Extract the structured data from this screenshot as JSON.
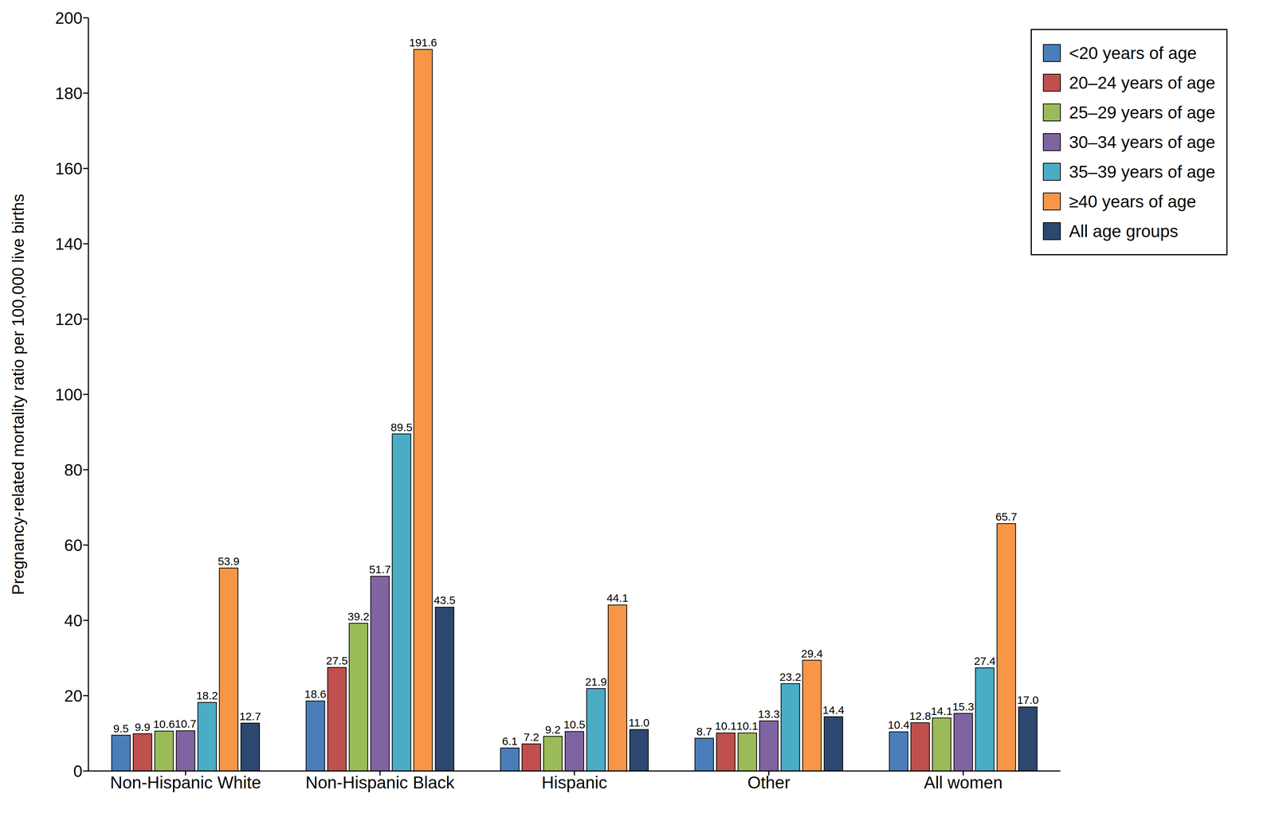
{
  "chart_data": {
    "type": "bar",
    "y_label": "Pregnancy-related mortality ratio per 100,000 live births",
    "categories": [
      "Non-Hispanic White",
      "Non-Hispanic Black",
      "Hispanic",
      "Other",
      "All women"
    ],
    "series": [
      {
        "name": "<20 years of age",
        "color": "#4a7ebb",
        "values": [
          9.5,
          18.6,
          6.1,
          8.7,
          10.4
        ],
        "value_labels": [
          "9.5",
          "18.6",
          "6.1",
          "8.7",
          "10.4"
        ]
      },
      {
        "name": "20–24 years of age",
        "color": "#c0504d",
        "values": [
          9.9,
          27.5,
          7.2,
          10.1,
          12.8
        ],
        "value_labels": [
          "9.9",
          "27.5",
          "7.2",
          "10.1",
          "12.8"
        ]
      },
      {
        "name": "25–29 years of age",
        "color": "#9bbb59",
        "values": [
          10.6,
          39.2,
          9.2,
          10.1,
          14.1
        ],
        "value_labels": [
          "10.6",
          "39.2",
          "9.2",
          "10.1",
          "14.1"
        ]
      },
      {
        "name": "30–34 years of age",
        "color": "#8064a2",
        "values": [
          10.7,
          51.7,
          10.5,
          13.3,
          15.3
        ],
        "value_labels": [
          "10.7",
          "51.7",
          "10.5",
          "13.3",
          "15.3"
        ]
      },
      {
        "name": "35–39 years of age",
        "color": "#4bacc6",
        "values": [
          18.2,
          89.5,
          21.9,
          23.2,
          27.4
        ],
        "value_labels": [
          "18.2",
          "89.5",
          "21.9",
          "23.2",
          "27.4"
        ]
      },
      {
        "name": "≥40 years of age",
        "color": "#f79646",
        "values": [
          53.9,
          191.6,
          44.1,
          29.4,
          65.7
        ],
        "value_labels": [
          "53.9",
          "191.6",
          "44.1",
          "29.4",
          "65.7"
        ]
      },
      {
        "name": "All age groups",
        "color": "#2c4770",
        "values": [
          12.7,
          43.5,
          11.0,
          14.4,
          17.0
        ],
        "value_labels": [
          "12.7",
          "43.5",
          "11.0",
          "14.4",
          "17.0"
        ]
      }
    ],
    "ylim": [
      0,
      200
    ],
    "yticks": [
      0,
      20,
      40,
      60,
      80,
      100,
      120,
      140,
      160,
      180,
      200
    ],
    "grid": false,
    "legend": "top-right",
    "data_labels": true
  }
}
